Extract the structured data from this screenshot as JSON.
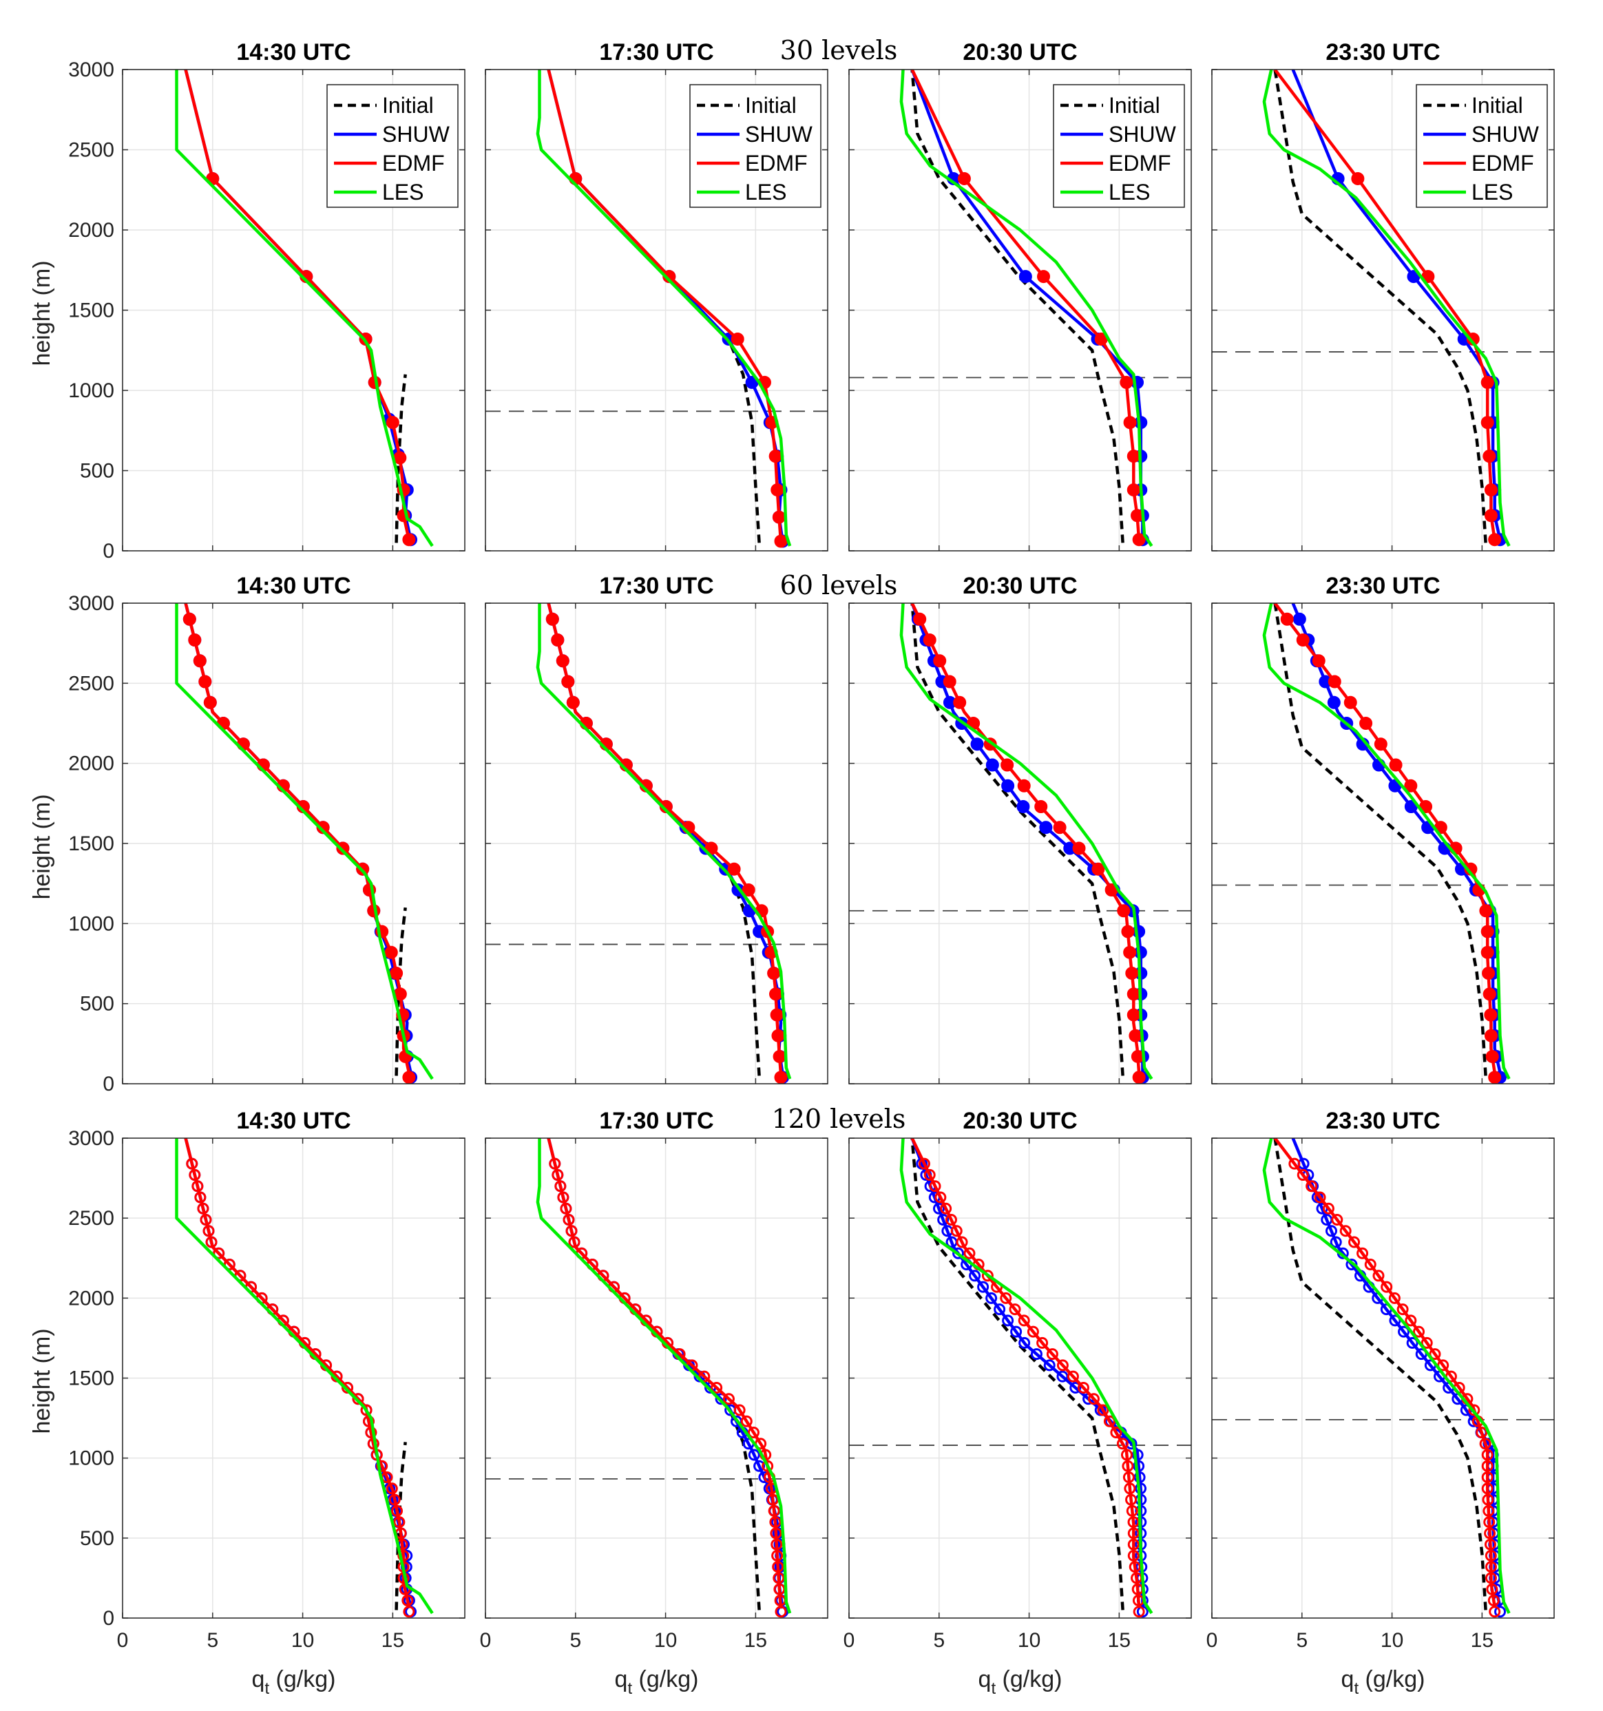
{
  "figure": {
    "row_labels": [
      "30  levels",
      "60  levels",
      "120  levels"
    ],
    "panel_titles": [
      "14:30 UTC",
      "17:30 UTC",
      "20:30 UTC",
      "23:30 UTC"
    ],
    "ylabel": "height (m)",
    "xlabel_main": "q",
    "xlabel_sub": "t",
    "xlabel_unit": " (g/kg)",
    "legend": [
      "Initial",
      "SHUW",
      "EDMF",
      "LES"
    ],
    "colors": {
      "initial": "#000000",
      "shuw": "#0000ff",
      "edmf": "#ff0000",
      "les": "#00ee00",
      "pbl": "#444444"
    }
  },
  "chart_data": {
    "type": "line",
    "xlim": [
      0,
      19
    ],
    "ylim": [
      0,
      3000
    ],
    "xticks": [
      0,
      5,
      10,
      15
    ],
    "yticks": [
      0,
      500,
      1000,
      1500,
      2000,
      2500,
      3000
    ],
    "columns": [
      {
        "title": "14:30 UTC",
        "initial": [
          [
            15.2,
            50
          ],
          [
            15.3,
            500
          ],
          [
            15.5,
            900
          ],
          [
            15.7,
            1100
          ]
        ],
        "les": [
          [
            3,
            3000
          ],
          [
            3,
            2500
          ],
          [
            13.4,
            1320
          ],
          [
            13.8,
            1250
          ],
          [
            14.3,
            900
          ],
          [
            15.2,
            500
          ],
          [
            15.8,
            200
          ],
          [
            16.5,
            150
          ],
          [
            17.2,
            30
          ]
        ],
        "shuw": [
          [
            3.5,
            3000
          ],
          [
            5,
            2320
          ],
          [
            10.2,
            1710
          ],
          [
            13.5,
            1320
          ],
          [
            14,
            1050
          ],
          [
            14.8,
            820
          ],
          [
            15.3,
            600
          ],
          [
            15.8,
            380
          ],
          [
            15.7,
            220
          ],
          [
            16,
            70
          ]
        ],
        "edmf": [
          [
            3.5,
            3000
          ],
          [
            5,
            2320
          ],
          [
            10.2,
            1710
          ],
          [
            13.5,
            1320
          ],
          [
            14,
            1050
          ],
          [
            15,
            800
          ],
          [
            15.4,
            580
          ],
          [
            15.6,
            380
          ],
          [
            15.6,
            220
          ],
          [
            15.9,
            70
          ]
        ],
        "pbl": null
      },
      {
        "title": "17:30 UTC",
        "initial": [
          [
            15.2,
            50
          ],
          [
            15,
            400
          ],
          [
            14.8,
            800
          ],
          [
            14.3,
            1100
          ],
          [
            13.5,
            1320
          ]
        ],
        "les": [
          [
            3,
            3000
          ],
          [
            3,
            2700
          ],
          [
            2.9,
            2600
          ],
          [
            3.1,
            2500
          ],
          [
            13.4,
            1320
          ],
          [
            15.2,
            1050
          ],
          [
            16,
            880
          ],
          [
            16.4,
            700
          ],
          [
            16.6,
            400
          ],
          [
            16.7,
            100
          ],
          [
            16.9,
            30
          ]
        ],
        "shuw": [
          [
            3.5,
            3000
          ],
          [
            5,
            2320
          ],
          [
            10.2,
            1710
          ],
          [
            13.5,
            1320
          ],
          [
            14.8,
            1050
          ],
          [
            15.8,
            800
          ],
          [
            16.2,
            590
          ],
          [
            16.4,
            380
          ],
          [
            16.3,
            210
          ],
          [
            16.5,
            60
          ]
        ],
        "edmf": [
          [
            3.5,
            3000
          ],
          [
            5,
            2320
          ],
          [
            10.2,
            1710
          ],
          [
            14,
            1320
          ],
          [
            15.5,
            1050
          ],
          [
            15.9,
            800
          ],
          [
            16.1,
            590
          ],
          [
            16.2,
            380
          ],
          [
            16.3,
            210
          ],
          [
            16.4,
            60
          ]
        ],
        "pbl": 870
      },
      {
        "title": "20:30 UTC",
        "initial": [
          [
            15.2,
            50
          ],
          [
            15,
            400
          ],
          [
            14.7,
            700
          ],
          [
            13.8,
            1100
          ],
          [
            13.5,
            1250
          ],
          [
            9.5,
            1700
          ],
          [
            5,
            2320
          ],
          [
            3.8,
            2600
          ],
          [
            3.5,
            3000
          ]
        ],
        "les": [
          [
            3,
            3000
          ],
          [
            2.9,
            2800
          ],
          [
            3.2,
            2600
          ],
          [
            4.5,
            2400
          ],
          [
            7,
            2200
          ],
          [
            9.5,
            2000
          ],
          [
            11.5,
            1800
          ],
          [
            13.5,
            1500
          ],
          [
            15,
            1200
          ],
          [
            15.8,
            1100
          ],
          [
            16.1,
            800
          ],
          [
            16.2,
            400
          ],
          [
            16.4,
            100
          ],
          [
            16.8,
            30
          ]
        ],
        "shuw": [
          [
            3.5,
            3000
          ],
          [
            5.8,
            2320
          ],
          [
            9.8,
            1710
          ],
          [
            13.8,
            1320
          ],
          [
            16,
            1050
          ],
          [
            16.2,
            800
          ],
          [
            16.2,
            590
          ],
          [
            16.2,
            380
          ],
          [
            16.3,
            220
          ],
          [
            16.3,
            70
          ]
        ],
        "edmf": [
          [
            3.5,
            3000
          ],
          [
            6.4,
            2320
          ],
          [
            10.8,
            1710
          ],
          [
            14,
            1320
          ],
          [
            15.4,
            1050
          ],
          [
            15.6,
            800
          ],
          [
            15.8,
            590
          ],
          [
            15.8,
            380
          ],
          [
            16,
            220
          ],
          [
            16.1,
            70
          ]
        ],
        "pbl": 1080
      },
      {
        "title": "23:30 UTC",
        "initial": [
          [
            15.2,
            50
          ],
          [
            15,
            400
          ],
          [
            14.7,
            700
          ],
          [
            14.2,
            1000
          ],
          [
            13.6,
            1150
          ],
          [
            12.5,
            1350
          ],
          [
            9,
            1700
          ],
          [
            5,
            2100
          ],
          [
            4.5,
            2300
          ],
          [
            3.5,
            3000
          ]
        ],
        "les": [
          [
            3.3,
            3000
          ],
          [
            2.9,
            2800
          ],
          [
            3.2,
            2600
          ],
          [
            4,
            2500
          ],
          [
            6,
            2380
          ],
          [
            8,
            2200
          ],
          [
            9.5,
            2000
          ],
          [
            11,
            1800
          ],
          [
            13,
            1500
          ],
          [
            15.2,
            1200
          ],
          [
            15.8,
            1050
          ],
          [
            15.9,
            700
          ],
          [
            16,
            300
          ],
          [
            16.2,
            100
          ],
          [
            16.5,
            30
          ]
        ],
        "shuw": [
          [
            4.5,
            3000
          ],
          [
            7,
            2320
          ],
          [
            11.2,
            1710
          ],
          [
            14,
            1320
          ],
          [
            15.6,
            1050
          ],
          [
            15.6,
            800
          ],
          [
            15.6,
            590
          ],
          [
            15.7,
            380
          ],
          [
            15.7,
            220
          ],
          [
            16,
            70
          ]
        ],
        "edmf": [
          [
            3.5,
            3000
          ],
          [
            8.1,
            2320
          ],
          [
            12,
            1710
          ],
          [
            14.5,
            1320
          ],
          [
            15.3,
            1050
          ],
          [
            15.3,
            800
          ],
          [
            15.4,
            590
          ],
          [
            15.5,
            380
          ],
          [
            15.5,
            220
          ],
          [
            15.7,
            70
          ]
        ],
        "pbl": 1240
      }
    ]
  }
}
